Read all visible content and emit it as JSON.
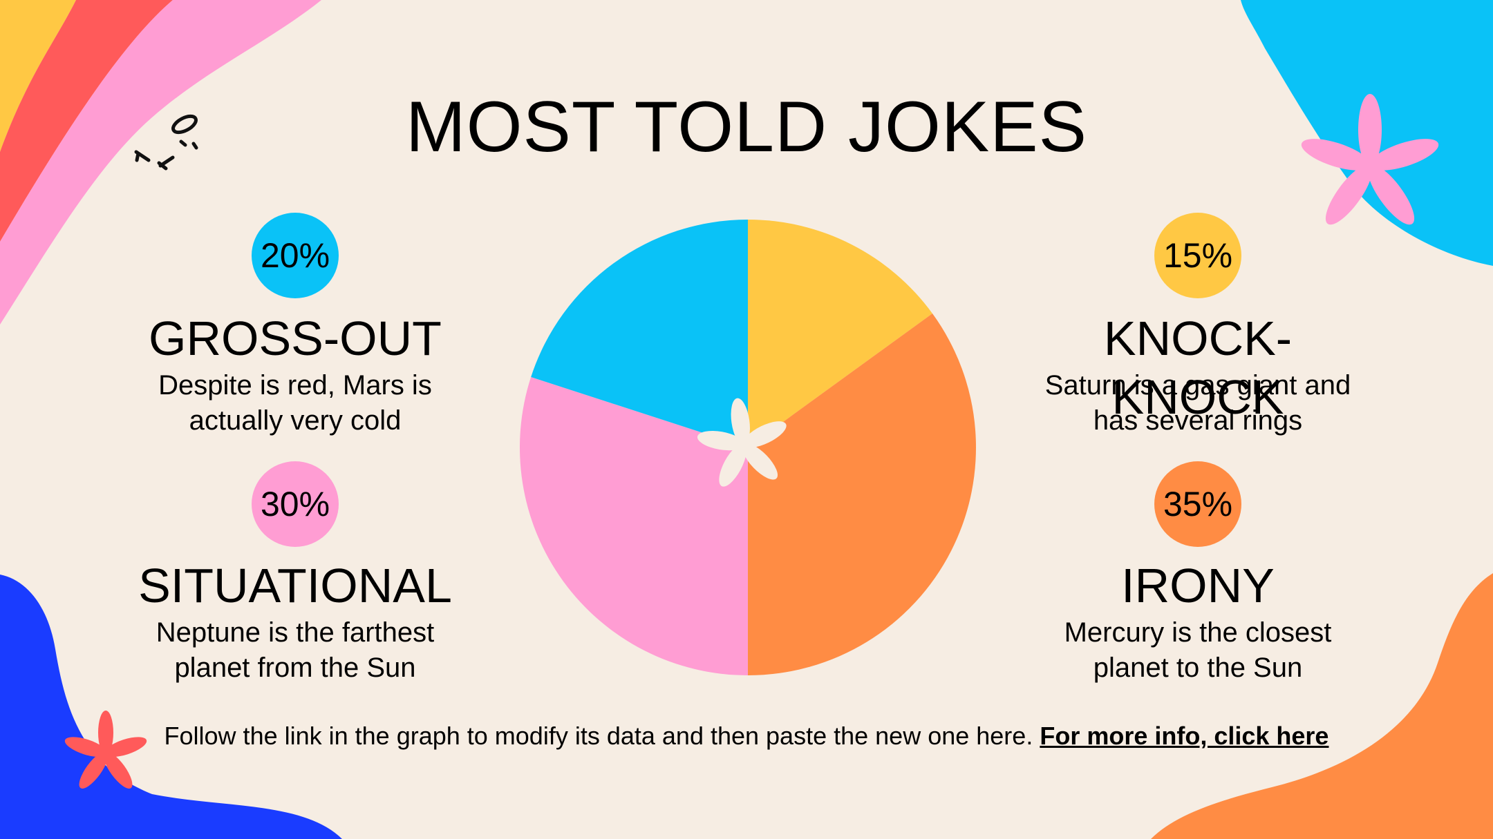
{
  "title": "MOST TOLD JOKES",
  "chart_data": {
    "type": "pie",
    "slices": [
      {
        "label": "KNOCK-KNOCK",
        "value": 15,
        "color": "#ffc844"
      },
      {
        "label": "IRONY",
        "value": 35,
        "color": "#ff8c44"
      },
      {
        "label": "SITUATIONAL",
        "value": 30,
        "color": "#ff9dd3"
      },
      {
        "label": "GROSS-OUT",
        "value": 20,
        "color": "#0ac2f7"
      }
    ]
  },
  "categories": [
    {
      "pct": "20%",
      "name": "GROSS-OUT",
      "desc1": "Despite is red, Mars is",
      "desc2": "actually very cold",
      "color": "#0ac2f7"
    },
    {
      "pct": "15%",
      "name": "KNOCK-",
      "name2": "KNOCK",
      "desc1": "Saturn is a gas giant and",
      "desc2": "has several rings",
      "color": "#ffc844"
    },
    {
      "pct": "30%",
      "name": "SITUATIONAL",
      "desc1": "Neptune is the farthest",
      "desc2": "planet from the Sun",
      "color": "#ff9dd3"
    },
    {
      "pct": "35%",
      "name": "IRONY",
      "desc1": "Mercury is the closest",
      "desc2": "planet to the Sun",
      "color": "#ff8c44"
    }
  ],
  "footer": {
    "text": "Follow the link in the graph to modify its data and then paste the new one here.",
    "link": "For more info, click here"
  },
  "colors": {
    "background": "#f6ede3",
    "yellow": "#ffc844",
    "red": "#ff5a5a",
    "pink": "#ff9dd3",
    "cyan": "#0ac2f7",
    "blue": "#1a3cff",
    "orange": "#ff8c44",
    "center_flower": "#f6ede3"
  }
}
